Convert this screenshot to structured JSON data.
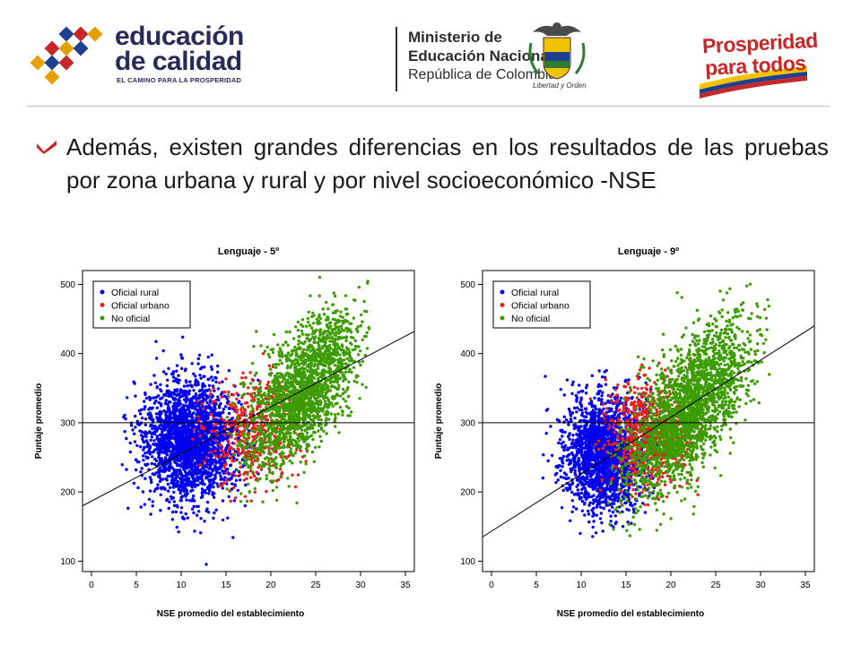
{
  "header": {
    "logo_left": {
      "line1": "educación",
      "line2": "de calidad",
      "tagline": "EL CAMINO PARA LA PROSPERIDAD"
    },
    "ministry": {
      "line1": "Ministerio de",
      "line2": "Educación Nacional",
      "line3": "República de Colombia",
      "motto": "Libertad y Orden"
    },
    "logo_right": {
      "line1": "Prosperidad",
      "line2": "para todos"
    }
  },
  "bullet": {
    "text": "Además, existen grandes diferencias en los resultados de las pruebas por zona urbana y rural y por nivel socioeconómico -NSE"
  },
  "colors": {
    "oficial_rural": "#0000ee",
    "oficial_urbano": "#ee1c1c",
    "no_oficial": "#3c9c00",
    "accent": "#c62828"
  },
  "chart_data": [
    {
      "type": "scatter",
      "title": "Lenguaje - 5º",
      "xlabel": "NSE promedio del establecimiento",
      "ylabel": "Puntaje promedio",
      "xlim": [
        -1,
        36
      ],
      "ylim": [
        85,
        520
      ],
      "xticks": [
        0,
        5,
        10,
        15,
        20,
        25,
        30,
        35
      ],
      "yticks": [
        100,
        200,
        300,
        400,
        500
      ],
      "reference_line_y": 300,
      "trend_line": [
        [
          -1,
          180
        ],
        [
          36,
          432
        ]
      ],
      "legend_position": "top-left",
      "series": [
        {
          "name": "Oficial rural",
          "color": "#0000ee",
          "count": 2400,
          "x_center": 11,
          "x_sd": 2.6,
          "y_center": 275,
          "y_sd": 42,
          "x_min": 3,
          "x_max": 19
        },
        {
          "name": "Oficial urbano",
          "color": "#ee1c1c",
          "count": 500,
          "x_center": 18,
          "x_sd": 2.6,
          "y_center": 285,
          "y_sd": 38,
          "x_min": 11,
          "x_max": 26
        },
        {
          "name": "No oficial",
          "color": "#3c9c00",
          "count": 1900,
          "x_center": 23.5,
          "x_sd": 3.2,
          "y_center": 345,
          "y_sd": 44,
          "slope": 11,
          "x_min": 15,
          "x_max": 31
        }
      ]
    },
    {
      "type": "scatter",
      "title": "Lenguaje - 9º",
      "xlabel": "NSE promedio del establecimiento",
      "ylabel": "Puntaje promedio",
      "xlim": [
        -1,
        36
      ],
      "ylim": [
        85,
        520
      ],
      "xticks": [
        0,
        5,
        10,
        15,
        20,
        25,
        30,
        35
      ],
      "yticks": [
        100,
        200,
        300,
        400,
        500
      ],
      "reference_line_y": 300,
      "trend_line": [
        [
          -1,
          135
        ],
        [
          36,
          440
        ]
      ],
      "legend_position": "top-left",
      "series": [
        {
          "name": "Oficial rural",
          "color": "#0000ee",
          "count": 1900,
          "x_center": 12.5,
          "x_sd": 2.2,
          "y_center": 255,
          "y_sd": 40,
          "x_min": 5,
          "x_max": 19
        },
        {
          "name": "Oficial urbano",
          "color": "#ee1c1c",
          "count": 700,
          "x_center": 17.5,
          "x_sd": 2.4,
          "y_center": 285,
          "y_sd": 40,
          "x_min": 11,
          "x_max": 24
        },
        {
          "name": "No oficial",
          "color": "#3c9c00",
          "count": 2200,
          "x_center": 22,
          "x_sd": 3.4,
          "y_center": 320,
          "y_sd": 45,
          "slope": 12,
          "x_min": 13,
          "x_max": 31
        }
      ]
    }
  ]
}
